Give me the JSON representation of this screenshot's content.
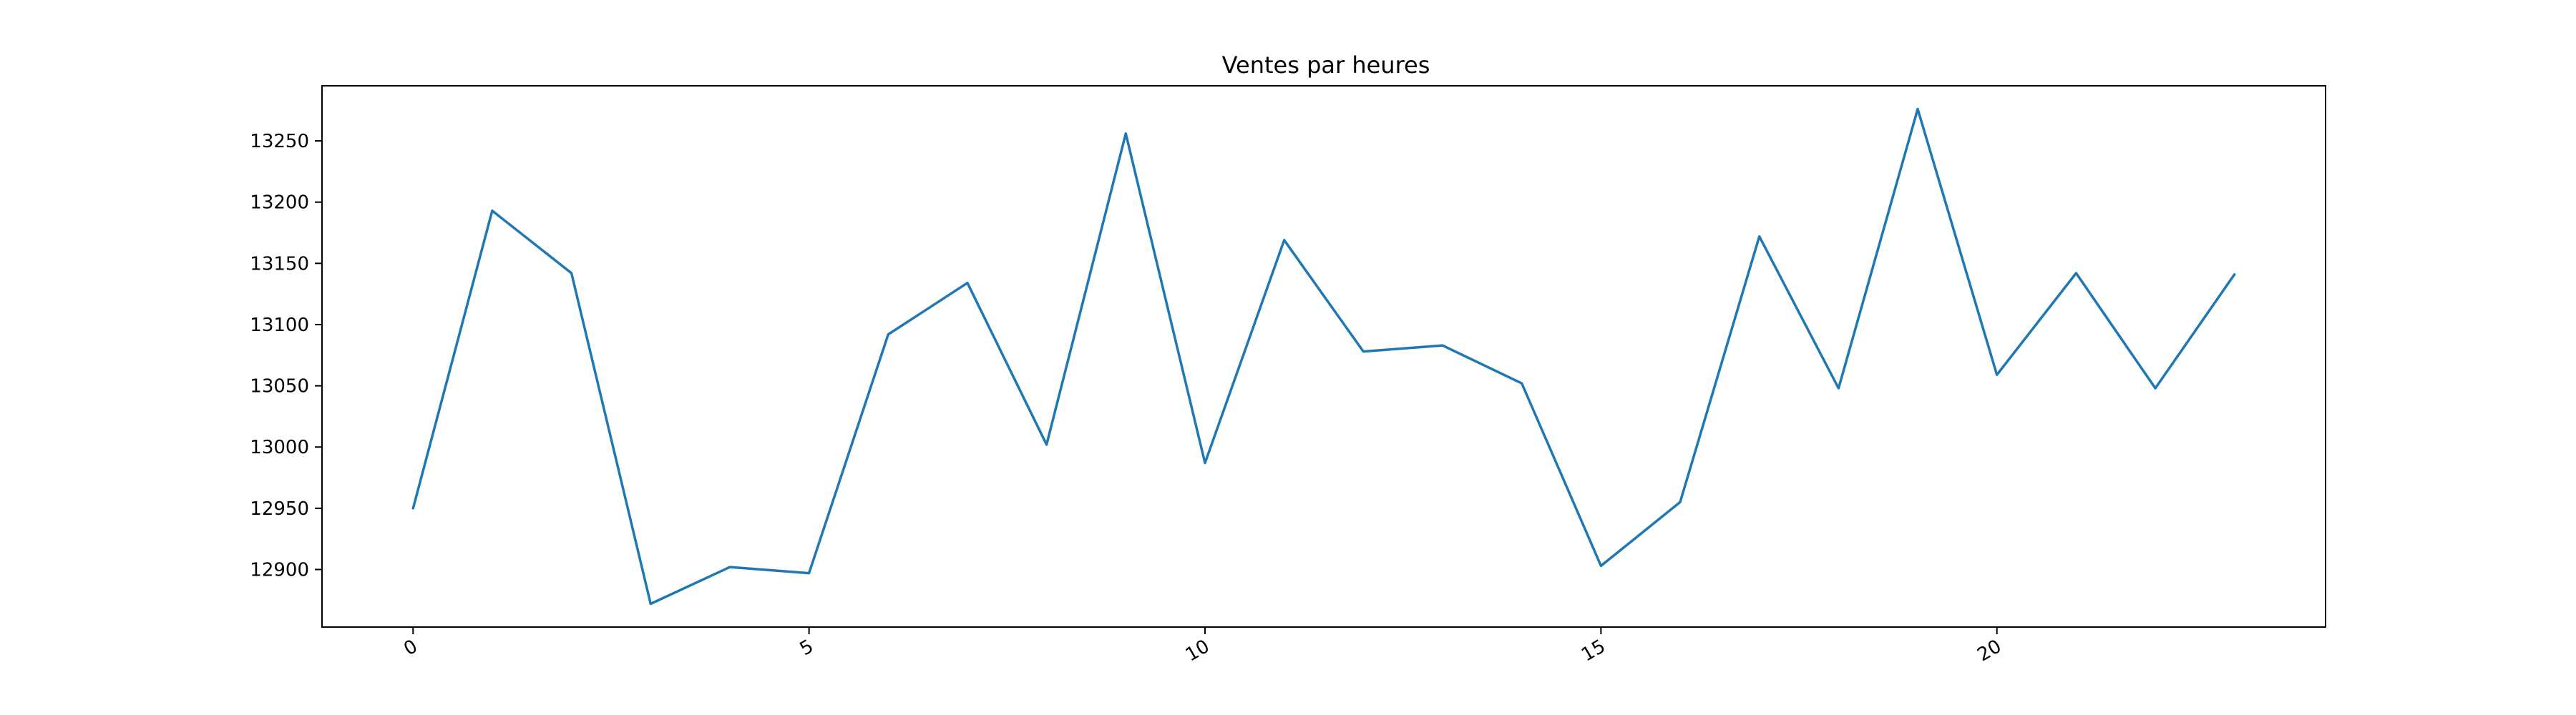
{
  "chart_data": {
    "type": "line",
    "title": "Ventes par heures",
    "xlabel": "",
    "ylabel": "",
    "xlim": [
      -1.15,
      24.15
    ],
    "ylim": [
      12853,
      13295
    ],
    "xticks": [
      0,
      5,
      10,
      15,
      20
    ],
    "yticks": [
      12900,
      12950,
      13000,
      13050,
      13100,
      13150,
      13200,
      13250
    ],
    "x_tick_rotation": 30,
    "grid": false,
    "legend": "none",
    "series": [
      {
        "color": "#1f77b4",
        "x": [
          0,
          1,
          2,
          3,
          4,
          5,
          6,
          7,
          8,
          9,
          10,
          11,
          12,
          13,
          14,
          15,
          16,
          17,
          18,
          19,
          20,
          21,
          22,
          23
        ],
        "values": [
          12950,
          13193,
          13142,
          12872,
          12902,
          12897,
          13092,
          13134,
          13002,
          13256,
          12987,
          13169,
          13078,
          13083,
          13052,
          12903,
          12955,
          13172,
          13048,
          13276,
          13059,
          13142,
          13048,
          13141
        ]
      }
    ]
  }
}
